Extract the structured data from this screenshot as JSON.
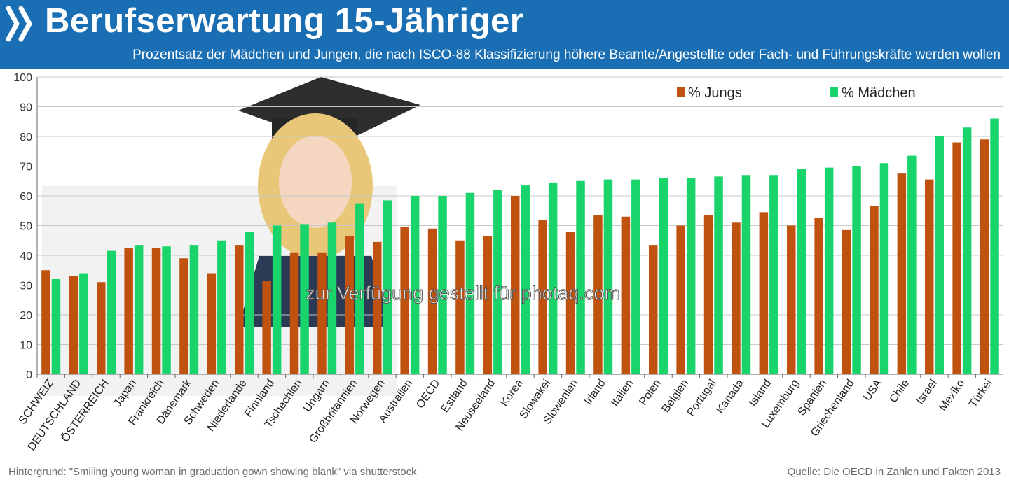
{
  "header": {
    "title": "Berufserwartung 15-Jähriger",
    "subtitle": "Prozentsatz der Mädchen und Jungen, die nach ISCO-88 Klassifizierung höhere Beamte/Angestellte oder Fach- und Führungskräfte werden wollen",
    "logo_icon": "oecd-chevrons-icon"
  },
  "watermark": "zur Verfügung gestellt für photaq.com",
  "footer": {
    "background_credit": "Hintergrund: \"Smiling young woman in graduation gown showing blank\" via shutterstock",
    "source": "Quelle: Die OECD in Zahlen und Fakten 2013"
  },
  "colors": {
    "header_bg": "#1a6fb4",
    "jungs": "#c0520f",
    "maedchen": "#19d36b",
    "grid": "#c8c8c8",
    "axis_text": "#333333"
  },
  "chart_data": {
    "type": "bar",
    "title": "Berufserwartung 15-Jähriger",
    "ylim": [
      0,
      100
    ],
    "yticks": [
      0,
      10,
      20,
      30,
      40,
      50,
      60,
      70,
      80,
      90,
      100
    ],
    "grid": true,
    "legend_position": "top-right",
    "categories": [
      "SCHWEIZ",
      "DEUTSCHLAND",
      "ÖSTERREICH",
      "Japan",
      "Frankreich",
      "Dänemark",
      "Schweden",
      "Niederlande",
      "Finnland",
      "Tschechien",
      "Ungarn",
      "Großbritannien",
      "Norwegen",
      "Australien",
      "OECD",
      "Estland",
      "Neuseeland",
      "Korea",
      "Slowakei",
      "Slowenien",
      "Irland",
      "Italien",
      "Polen",
      "Belgien",
      "Portugal",
      "Kanada",
      "Island",
      "Luxemburg",
      "Spanien",
      "Griechenland",
      "USA",
      "Chile",
      "Israel",
      "Mexiko",
      "Türkei"
    ],
    "series": [
      {
        "name": "% Jungs",
        "color": "#c0520f",
        "values": [
          35,
          33,
          31,
          42.5,
          42.5,
          39,
          34,
          43.5,
          31.5,
          41,
          41,
          46.5,
          44.5,
          49.5,
          49,
          45,
          46.5,
          60,
          52,
          48,
          53.5,
          53,
          43.5,
          50,
          53.5,
          51,
          54.5,
          50,
          52.5,
          48.5,
          56.5,
          67.5,
          65.5,
          78,
          79
        ]
      },
      {
        "name": "% Mädchen",
        "color": "#19d36b",
        "values": [
          32,
          34,
          41.5,
          43.5,
          43,
          43.5,
          45,
          48,
          50,
          50.5,
          51,
          57.5,
          58.5,
          60,
          60,
          61,
          62,
          63.5,
          64.5,
          65,
          65.5,
          65.5,
          66,
          66,
          66.5,
          67,
          67,
          69,
          69.5,
          70,
          71,
          73.5,
          80,
          83,
          86
        ]
      }
    ]
  }
}
